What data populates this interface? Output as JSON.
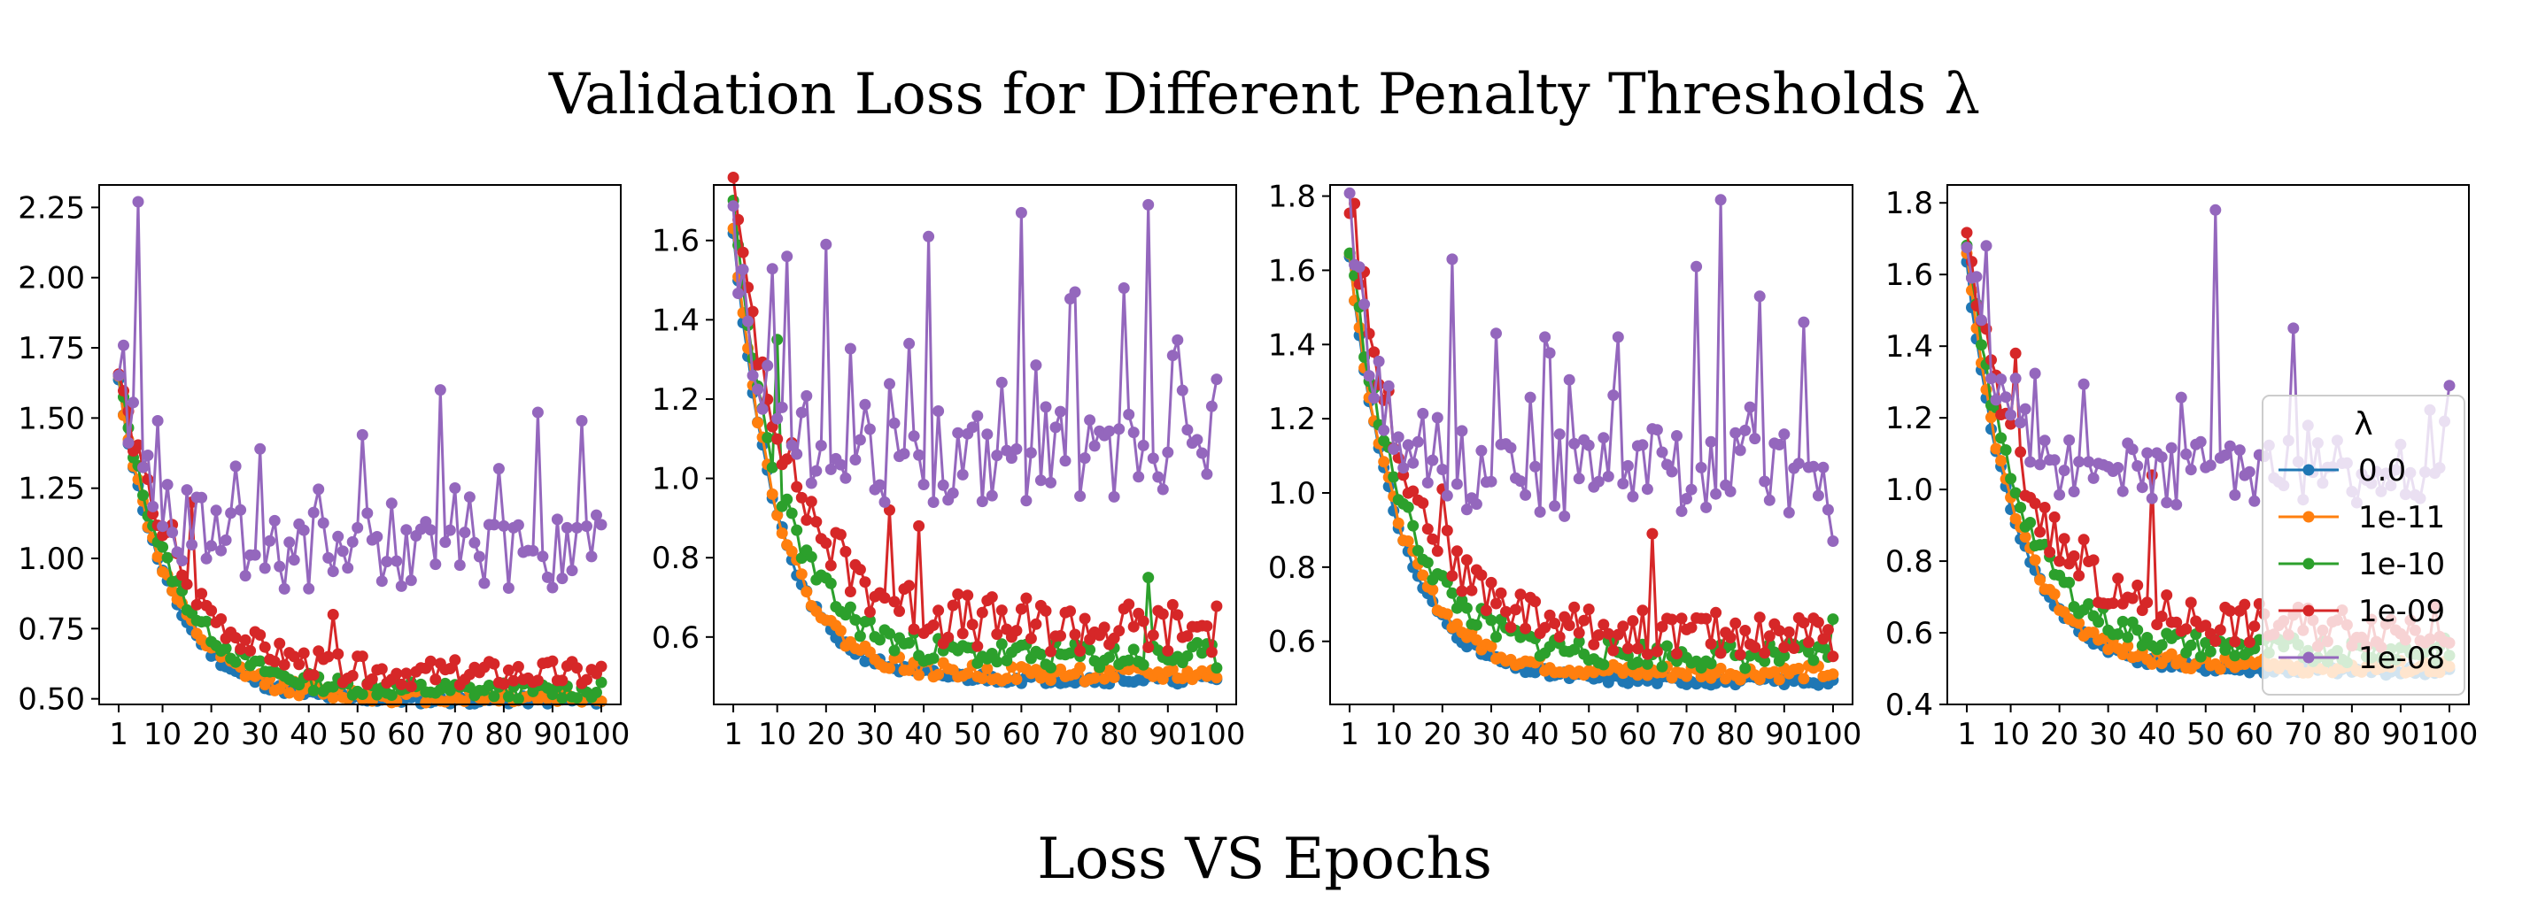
{
  "figure": {
    "suptitle": "Validation Loss for Different Penalty Thresholds λ",
    "footer": "Loss VS Epochs"
  },
  "legend": {
    "title": "λ",
    "location": "right, inside last panel"
  },
  "series_style": {
    "0.0": "#1f77b4",
    "1e-11": "#ff7f0e",
    "1e-10": "#2ca02c",
    "1e-09": "#d62728",
    "1e-08": "#9467bd"
  },
  "chart_data": [
    {
      "type": "line",
      "title": "",
      "xlabel": "",
      "ylabel": "",
      "xlim": [
        -3,
        104
      ],
      "ylim": [
        0.48,
        2.33
      ],
      "xticks": [
        1,
        10,
        20,
        30,
        40,
        50,
        60,
        70,
        80,
        90,
        100
      ],
      "yticks": [
        0.5,
        0.75,
        1.0,
        1.25,
        1.5,
        1.75,
        2.0,
        2.25
      ],
      "ytick_labels": [
        "0.50",
        "0.75",
        "1.00",
        "1.25",
        "1.50",
        "1.75",
        "2.00",
        "2.25"
      ],
      "grid": false,
      "legend": false,
      "series": [
        {
          "name": "0.0",
          "start": 1.62,
          "end": 0.49,
          "tau": 10,
          "noise": 0.015,
          "seed": 11
        },
        {
          "name": "1e-11",
          "start": 1.63,
          "end": 0.5,
          "tau": 10,
          "noise": 0.025,
          "seed": 12
        },
        {
          "name": "1e-10",
          "start": 1.64,
          "end": 0.52,
          "tau": 11,
          "noise": 0.03,
          "seed": 13
        },
        {
          "name": "1e-09",
          "start": 1.65,
          "end": 0.57,
          "tau": 12,
          "noise": 0.05,
          "seed": 14,
          "spikes": [
            [
              12,
              1.12
            ],
            [
              16,
              1.2
            ],
            [
              45,
              0.8
            ]
          ]
        },
        {
          "name": "1e-08",
          "start": 1.68,
          "end": 0.98,
          "tau": 7,
          "noise": 0.14,
          "seed": 15,
          "spikes": [
            [
              5,
              2.27
            ],
            [
              9,
              1.49
            ],
            [
              30,
              1.39
            ],
            [
              51,
              1.44
            ],
            [
              67,
              1.6
            ],
            [
              87,
              1.52
            ],
            [
              96,
              1.49
            ],
            [
              100,
              1.12
            ]
          ]
        }
      ]
    },
    {
      "type": "line",
      "title": "",
      "xlabel": "",
      "ylabel": "",
      "xlim": [
        -3,
        104
      ],
      "ylim": [
        0.43,
        1.74
      ],
      "xticks": [
        1,
        10,
        20,
        30,
        40,
        50,
        60,
        70,
        80,
        90,
        100
      ],
      "yticks": [
        0.6,
        0.8,
        1.0,
        1.2,
        1.4,
        1.6
      ],
      "ytick_labels": [
        "0.6",
        "0.8",
        "1.0",
        "1.2",
        "1.4",
        "1.6"
      ],
      "grid": false,
      "legend": false,
      "series": [
        {
          "name": "0.0",
          "start": 1.62,
          "end": 0.49,
          "tau": 9,
          "noise": 0.012,
          "seed": 21
        },
        {
          "name": "1e-11",
          "start": 1.64,
          "end": 0.5,
          "tau": 9,
          "noise": 0.02,
          "seed": 22
        },
        {
          "name": "1e-10",
          "start": 1.66,
          "end": 0.54,
          "tau": 10,
          "noise": 0.035,
          "seed": 23,
          "spikes": [
            [
              10,
              1.35
            ],
            [
              86,
              0.75
            ]
          ]
        },
        {
          "name": "1e-09",
          "start": 1.7,
          "end": 0.6,
          "tau": 12,
          "noise": 0.07,
          "seed": 24,
          "spikes": [
            [
              3,
              1.57
            ],
            [
              33,
              0.92
            ],
            [
              39,
              0.88
            ]
          ]
        },
        {
          "name": "1e-08",
          "start": 1.62,
          "end": 1.02,
          "tau": 6,
          "noise": 0.13,
          "seed": 25,
          "spikes": [
            [
              12,
              1.56
            ],
            [
              20,
              1.59
            ],
            [
              41,
              1.61
            ],
            [
              60,
              1.67
            ],
            [
              71,
              1.47
            ],
            [
              81,
              1.48
            ],
            [
              86,
              1.69
            ],
            [
              91,
              1.31
            ],
            [
              100,
              1.25
            ]
          ]
        }
      ]
    },
    {
      "type": "line",
      "title": "",
      "xlabel": "",
      "ylabel": "",
      "xlim": [
        -3,
        104
      ],
      "ylim": [
        0.43,
        1.83
      ],
      "xticks": [
        1,
        10,
        20,
        30,
        40,
        50,
        60,
        70,
        80,
        90,
        100
      ],
      "yticks": [
        0.6,
        0.8,
        1.0,
        1.2,
        1.4,
        1.6,
        1.8
      ],
      "ytick_labels": [
        "0.6",
        "0.8",
        "1.0",
        "1.2",
        "1.4",
        "1.6",
        "1.8"
      ],
      "grid": false,
      "legend": false,
      "series": [
        {
          "name": "0.0",
          "start": 1.63,
          "end": 0.49,
          "tau": 10,
          "noise": 0.012,
          "seed": 31
        },
        {
          "name": "1e-11",
          "start": 1.64,
          "end": 0.51,
          "tau": 10,
          "noise": 0.02,
          "seed": 32
        },
        {
          "name": "1e-10",
          "start": 1.65,
          "end": 0.55,
          "tau": 11,
          "noise": 0.035,
          "seed": 33,
          "spikes": [
            [
              100,
              0.66
            ]
          ]
        },
        {
          "name": "1e-09",
          "start": 1.78,
          "end": 0.6,
          "tau": 12,
          "noise": 0.06,
          "seed": 34,
          "spikes": [
            [
              2,
              1.78
            ],
            [
              20,
              1.01
            ],
            [
              63,
              0.89
            ]
          ]
        },
        {
          "name": "1e-08",
          "start": 1.66,
          "end": 1.02,
          "tau": 6,
          "noise": 0.12,
          "seed": 35,
          "spikes": [
            [
              22,
              1.63
            ],
            [
              31,
              1.43
            ],
            [
              41,
              1.42
            ],
            [
              56,
              1.42
            ],
            [
              72,
              1.61
            ],
            [
              77,
              1.79
            ],
            [
              85,
              1.53
            ],
            [
              94,
              1.46
            ],
            [
              100,
              0.87
            ]
          ]
        }
      ]
    },
    {
      "type": "line",
      "title": "",
      "xlabel": "",
      "ylabel": "",
      "xlim": [
        -3,
        104
      ],
      "ylim": [
        0.4,
        1.85
      ],
      "xticks": [
        1,
        10,
        20,
        30,
        40,
        50,
        60,
        70,
        80,
        90,
        100
      ],
      "yticks": [
        0.4,
        0.6,
        0.8,
        1.0,
        1.2,
        1.4,
        1.6,
        1.8
      ],
      "ytick_labels": [
        "0.4",
        "0.6",
        "0.8",
        "1.0",
        "1.2",
        "1.4",
        "1.6",
        "1.8"
      ],
      "grid": false,
      "legend": true,
      "series": [
        {
          "name": "0.0",
          "start": 1.62,
          "end": 0.49,
          "tau": 10,
          "noise": 0.012,
          "seed": 41
        },
        {
          "name": "1e-11",
          "start": 1.64,
          "end": 0.5,
          "tau": 10,
          "noise": 0.02,
          "seed": 42
        },
        {
          "name": "1e-10",
          "start": 1.66,
          "end": 0.54,
          "tau": 11,
          "noise": 0.035,
          "seed": 43
        },
        {
          "name": "1e-09",
          "start": 1.7,
          "end": 0.6,
          "tau": 12,
          "noise": 0.06,
          "seed": 44,
          "spikes": [
            [
              11,
              1.38
            ],
            [
              39,
              1.04
            ],
            [
              25,
              0.86
            ]
          ]
        },
        {
          "name": "1e-08",
          "start": 1.68,
          "end": 1.02,
          "tau": 6,
          "noise": 0.09,
          "seed": 45,
          "spikes": [
            [
              5,
              1.68
            ],
            [
              52,
              1.78
            ],
            [
              68,
              1.45
            ],
            [
              100,
              1.29
            ]
          ]
        }
      ]
    }
  ]
}
